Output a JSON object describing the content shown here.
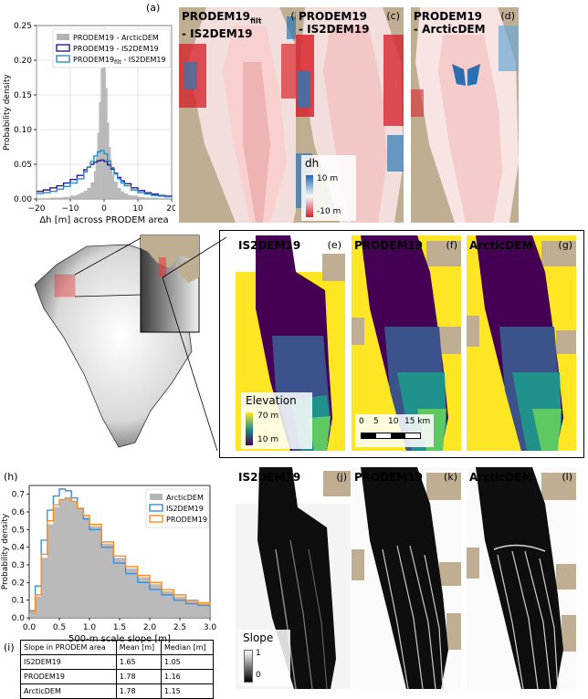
{
  "panel_labels": [
    "(a)",
    "(b)",
    "(c)",
    "(d)",
    "(e)",
    "(f)",
    "(g)",
    "(h)",
    "(j)",
    "(k)",
    "(l)",
    "(i)"
  ],
  "map_titles": {
    "b": {
      "l1": "PRODEM19",
      "sub": "filt",
      "l2": "- IS2DEM19"
    },
    "c": {
      "l1": "PRODEM19",
      "l2": "- IS2DEM19"
    },
    "d": {
      "l1": "PRODEM19",
      "l2": "- ArcticDEM"
    },
    "e": "IS2DEM19",
    "f": "PRODEM19",
    "g": "ArcticDEM",
    "j": "IS2DEM19",
    "k": "PRODEM19",
    "l": "ArcticDEM"
  },
  "colorbars": {
    "dh": {
      "title": "dh",
      "max": "10 m",
      "min": "-10 m",
      "colors": [
        "#2166ac",
        "#f7f7f7",
        "#d6202e"
      ]
    },
    "elevation": {
      "title": "Elevation",
      "max": "70 m",
      "min": "10 m",
      "colors": [
        "#fde725",
        "#21918c",
        "#440154"
      ]
    },
    "slope": {
      "title": "Slope",
      "max": "1",
      "min": "0"
    }
  },
  "scalebar": {
    "ticks": [
      "0",
      "5",
      "10",
      "15 km"
    ]
  },
  "table": {
    "header": [
      "Slope in PRODEM area",
      "Mean [m]",
      "Median [m]"
    ],
    "rows": [
      [
        "IS2DEM19",
        "1.65",
        "1.05"
      ],
      [
        "PRODEM19",
        "1.78",
        "1.16"
      ],
      [
        "ArcticDEM",
        "1.78",
        "1.15"
      ]
    ]
  },
  "chart_data": [
    {
      "type": "line",
      "panel": "a",
      "xlabel": "Δh [m] across PRODEM area",
      "ylabel": "Probability density",
      "xlim": [
        -20,
        20
      ],
      "ylim": [
        0,
        0.25
      ],
      "xticks": [
        "−20",
        "−10",
        "0",
        "10",
        "20"
      ],
      "yticks": [
        "0.00",
        "0.05",
        "0.10",
        "0.15",
        "0.20",
        "0.25"
      ],
      "grid": true,
      "legend_position": "top-right",
      "legend": [
        {
          "name": "PRODEM19 - ArcticDEM",
          "color": "#b3b3b3"
        },
        {
          "name": "PRODEM19 - IS2DEM19",
          "color": "#1f1f9e"
        },
        {
          "name": "PRODEM19",
          "sub": "filt",
          "tail": " - IS2DEM19",
          "color": "#2b8cbe"
        }
      ],
      "series": [
        {
          "name": "PRODEM19 - ArcticDEM",
          "color": "#b3b3b3",
          "x": [
            -20,
            -18,
            -16,
            -14,
            -12,
            -10,
            -8,
            -7,
            -6,
            -5,
            -4,
            -3,
            -2.5,
            -2,
            -1.5,
            -1,
            -0.5,
            0,
            0.5,
            1,
            1.5,
            2,
            2.5,
            3,
            4,
            5,
            6,
            7,
            8,
            10,
            12,
            14,
            16,
            18,
            20
          ],
          "y": [
            0.001,
            0.001,
            0.002,
            0.002,
            0.003,
            0.005,
            0.007,
            0.009,
            0.012,
            0.016,
            0.024,
            0.04,
            0.06,
            0.095,
            0.14,
            0.188,
            0.222,
            0.2,
            0.16,
            0.11,
            0.075,
            0.05,
            0.035,
            0.025,
            0.016,
            0.011,
            0.008,
            0.006,
            0.005,
            0.003,
            0.002,
            0.002,
            0.001,
            0.001,
            0.001
          ]
        },
        {
          "name": "PRODEM19 - IS2DEM19",
          "color": "#1f1f9e",
          "x": [
            -20,
            -18,
            -16,
            -14,
            -12,
            -10,
            -8,
            -6,
            -5,
            -4,
            -3,
            -2,
            -1,
            0,
            1,
            2,
            3,
            4,
            5,
            6,
            8,
            10,
            12,
            14,
            16,
            18,
            20
          ],
          "y": [
            0.011,
            0.013,
            0.016,
            0.019,
            0.023,
            0.028,
            0.034,
            0.042,
            0.046,
            0.05,
            0.053,
            0.055,
            0.056,
            0.054,
            0.049,
            0.043,
            0.037,
            0.031,
            0.026,
            0.022,
            0.016,
            0.012,
            0.009,
            0.007,
            0.005,
            0.004,
            0.003
          ]
        },
        {
          "name": "PRODEM19 filt - IS2DEM19",
          "color": "#2b8cbe",
          "x": [
            -20,
            -18,
            -16,
            -14,
            -12,
            -10,
            -8,
            -6,
            -5,
            -4,
            -3,
            -2,
            -1,
            0,
            1,
            2,
            3,
            4,
            5,
            6,
            8,
            10,
            12,
            14,
            16,
            18,
            20
          ],
          "y": [
            0.008,
            0.009,
            0.011,
            0.014,
            0.018,
            0.023,
            0.029,
            0.039,
            0.046,
            0.054,
            0.062,
            0.068,
            0.07,
            0.065,
            0.055,
            0.045,
            0.036,
            0.029,
            0.023,
            0.019,
            0.013,
            0.009,
            0.007,
            0.005,
            0.004,
            0.003,
            0.002
          ]
        }
      ]
    },
    {
      "type": "line",
      "panel": "h",
      "xlabel": "500-m scale slope [m]",
      "ylabel": "Probability density",
      "xlim": [
        0,
        3
      ],
      "ylim": [
        0,
        0.75
      ],
      "xticks": [
        "0.0",
        "0.5",
        "1.0",
        "1.5",
        "2.0",
        "2.5",
        "3.0"
      ],
      "yticks": [
        "0.0",
        "0.1",
        "0.2",
        "0.3",
        "0.4",
        "0.5",
        "0.6",
        "0.7"
      ],
      "grid": false,
      "legend_position": "top-right",
      "legend": [
        {
          "name": "ArcticDEM",
          "color": "#b3b3b3"
        },
        {
          "name": "IS2DEM19",
          "color": "#3a8fd9"
        },
        {
          "name": "PRODEM19",
          "color": "#ff8c1a"
        }
      ],
      "series": [
        {
          "name": "ArcticDEM",
          "color": "#b3b3b3",
          "x": [
            0,
            0.1,
            0.2,
            0.3,
            0.4,
            0.5,
            0.6,
            0.7,
            0.8,
            0.9,
            1.0,
            1.2,
            1.4,
            1.6,
            1.8,
            2.0,
            2.2,
            2.4,
            2.6,
            2.8,
            3.0
          ],
          "y": [
            0.03,
            0.12,
            0.34,
            0.53,
            0.63,
            0.67,
            0.68,
            0.66,
            0.62,
            0.57,
            0.52,
            0.42,
            0.34,
            0.28,
            0.23,
            0.19,
            0.15,
            0.12,
            0.1,
            0.08,
            0.07
          ]
        },
        {
          "name": "IS2DEM19",
          "color": "#3a8fd9",
          "x": [
            0,
            0.1,
            0.2,
            0.3,
            0.4,
            0.5,
            0.6,
            0.7,
            0.8,
            0.9,
            1.0,
            1.2,
            1.4,
            1.6,
            1.8,
            2.0,
            2.2,
            2.4,
            2.6,
            2.8,
            3.0
          ],
          "y": [
            0.04,
            0.18,
            0.44,
            0.61,
            0.69,
            0.73,
            0.72,
            0.68,
            0.62,
            0.56,
            0.5,
            0.4,
            0.31,
            0.25,
            0.2,
            0.16,
            0.13,
            0.1,
            0.08,
            0.07,
            0.06
          ]
        },
        {
          "name": "PRODEM19",
          "color": "#ff8c1a",
          "x": [
            0,
            0.1,
            0.2,
            0.3,
            0.4,
            0.5,
            0.6,
            0.7,
            0.8,
            0.9,
            1.0,
            1.2,
            1.4,
            1.6,
            1.8,
            2.0,
            2.2,
            2.4,
            2.6,
            2.8,
            3.0
          ],
          "y": [
            0.03,
            0.13,
            0.36,
            0.55,
            0.64,
            0.67,
            0.68,
            0.66,
            0.62,
            0.58,
            0.53,
            0.43,
            0.35,
            0.29,
            0.24,
            0.2,
            0.16,
            0.13,
            0.1,
            0.085,
            0.07
          ]
        }
      ]
    }
  ]
}
